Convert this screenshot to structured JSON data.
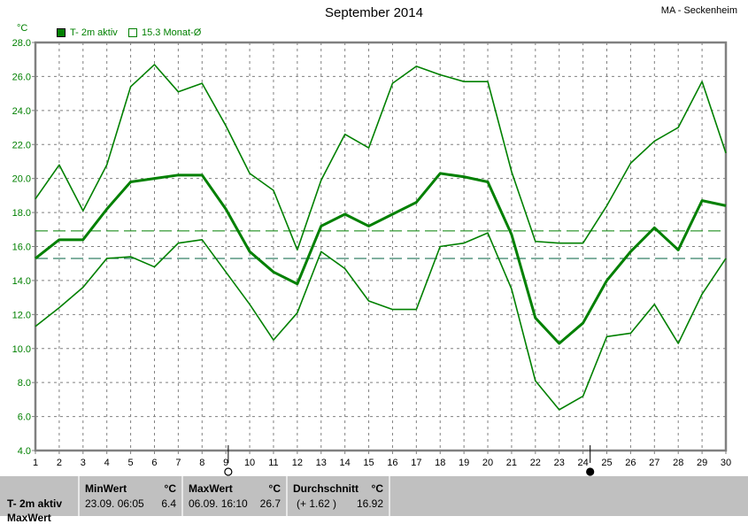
{
  "header": {
    "title": "September 2014",
    "station": "MA - Seckenheim",
    "unit": "°C"
  },
  "legend": [
    {
      "label": "T- 2m aktiv",
      "color": "#008000",
      "filled": true
    },
    {
      "label": "15.3 Monat-Ø",
      "color": "#008000",
      "filled": false
    }
  ],
  "chart_data": {
    "type": "line",
    "title": "September 2014",
    "ylabel": "°C",
    "ylim": [
      4.0,
      28.0
    ],
    "yticks": [
      "4.0",
      "6.0",
      "8.0",
      "10.0",
      "12.0",
      "14.0",
      "16.0",
      "18.0",
      "20.0",
      "22.0",
      "24.0",
      "26.0",
      "28.0"
    ],
    "x": [
      1,
      2,
      3,
      4,
      5,
      6,
      7,
      8,
      9,
      10,
      11,
      12,
      13,
      14,
      15,
      16,
      17,
      18,
      19,
      20,
      21,
      22,
      23,
      24,
      25,
      26,
      27,
      28,
      29,
      30
    ],
    "grid": true,
    "series": [
      {
        "role": "max",
        "color": "#008000",
        "values": [
          18.8,
          20.8,
          18.1,
          20.8,
          25.4,
          26.7,
          25.1,
          25.6,
          23.1,
          20.3,
          19.3,
          15.8,
          19.9,
          22.6,
          21.8,
          25.6,
          26.6,
          26.1,
          25.7,
          25.7,
          20.4,
          16.3,
          16.2,
          16.2,
          18.4,
          20.9,
          22.2,
          23.0,
          25.7,
          21.5
        ]
      },
      {
        "role": "mean",
        "name": "T- 2m aktiv",
        "color": "#008000",
        "values": [
          15.3,
          16.4,
          16.4,
          18.2,
          19.8,
          20.0,
          20.2,
          20.2,
          18.2,
          15.7,
          14.5,
          13.8,
          17.2,
          17.9,
          17.2,
          17.9,
          18.6,
          20.3,
          20.1,
          19.8,
          16.7,
          11.8,
          10.3,
          11.5,
          14.0,
          15.7,
          17.1,
          15.8,
          18.7,
          18.4
        ]
      },
      {
        "role": "min",
        "color": "#008000",
        "values": [
          11.3,
          12.4,
          13.6,
          15.3,
          15.4,
          14.8,
          16.2,
          16.4,
          14.5,
          12.6,
          10.5,
          12.1,
          15.7,
          14.7,
          12.8,
          12.3,
          12.3,
          16.0,
          16.2,
          16.8,
          13.5,
          8.1,
          6.4,
          7.2,
          10.7,
          10.9,
          12.6,
          10.3,
          13.2,
          15.3
        ]
      }
    ],
    "reference_lines": [
      {
        "label": "Durchschnitt",
        "value": 16.92,
        "color": "#008000"
      },
      {
        "label": "15.3 Monat-Ø",
        "value": 15.3,
        "color": "#006040"
      }
    ],
    "moon_phases": [
      {
        "day": 9.1,
        "phase": "full-moon"
      },
      {
        "day": 24.3,
        "phase": "new-moon"
      }
    ]
  },
  "stats": {
    "row_label": "T- 2m aktiv",
    "row2_label": "MaxWert",
    "min": {
      "header": "MinWert",
      "unit": "°C",
      "datetime": "23.09.  06:05",
      "value": "6.4"
    },
    "max": {
      "header": "MaxWert",
      "unit": "°C",
      "datetime": "06.09.  16:10",
      "value": "26.7"
    },
    "avg": {
      "header": "Durchschnitt",
      "unit": "°C",
      "deviation": "(+ 1.62 )",
      "value": "16.92"
    }
  }
}
